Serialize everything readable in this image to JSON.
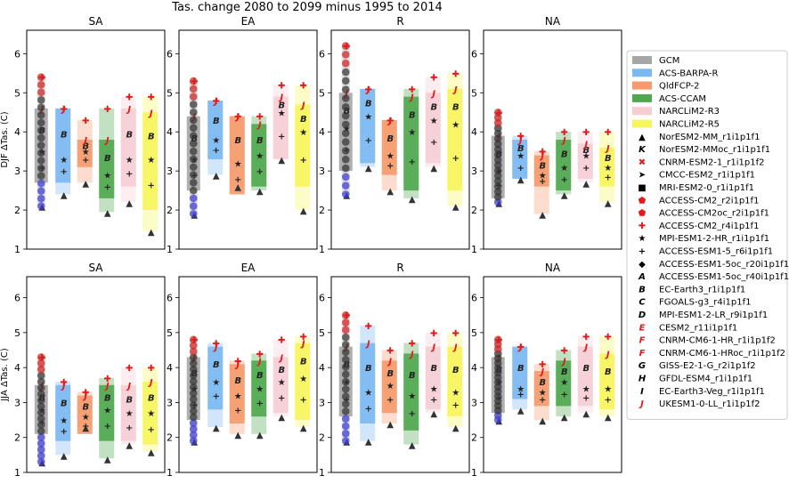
{
  "chart_data": {
    "type": "box",
    "title": "Tas. change 2080 to 2099 minus 1995 to 2014",
    "regions": [
      "SA",
      "EA",
      "R",
      "NA"
    ],
    "row_ylabels": [
      "DJF ΔTas. (C)",
      "JJA ΔTas. (C)"
    ],
    "ylim": [
      1,
      6.6
    ],
    "yticks": [
      1,
      2,
      3,
      4,
      5,
      6
    ],
    "colors": {
      "GCM": "#a6a6a6",
      "ACS-BARPA-R": "#7ab8f0",
      "QldFCP-2": "#f59a6c",
      "ACS-CCAM": "#4fa84f",
      "NARCLiM2-R3": "#f6cdd5",
      "NARCLiM2-R5": "#f7f55c"
    },
    "legend_groups": [
      {
        "label": "GCM",
        "color": "#a6a6a6"
      },
      {
        "label": "ACS-BARPA-R",
        "color": "#7ab8f0"
      },
      {
        "label": "QldFCP-2",
        "color": "#f59a6c"
      },
      {
        "label": "ACS-CCAM",
        "color": "#4fa84f"
      },
      {
        "label": "NARCLiM2-R3",
        "color": "#f6cdd5"
      },
      {
        "label": "NARCLiM2-R5",
        "color": "#f7f55c"
      }
    ],
    "legend_models": [
      {
        "label": "NorESM2-MM_r1i1p1f1",
        "marker": "▲",
        "color": "#000000"
      },
      {
        "label": "NorESM2-MMoc_r1i1p1f1",
        "marker": "K",
        "color": "#000000"
      },
      {
        "label": "CNRM-ESM2-1_r1i1p1f2",
        "marker": "✖",
        "color": "#e31a1c"
      },
      {
        "label": "CMCC-ESM2_r1i1p1f1",
        "marker": "➤",
        "color": "#000000"
      },
      {
        "label": "MRI-ESM2-0_r1i1p1f1",
        "marker": "■",
        "color": "#000000"
      },
      {
        "label": "ACCESS-CM2_r2i1p1f1",
        "marker": "⬟",
        "color": "#e31a1c"
      },
      {
        "label": "ACCESS-CM2oc_r2i1p1f1",
        "marker": "⬟",
        "color": "#e31a1c"
      },
      {
        "label": "ACCESS-CM2_r4i1p1f1",
        "marker": "✚",
        "color": "#e31a1c"
      },
      {
        "label": "MPI-ESM1-2-HR_r1i1p1f1",
        "marker": "★",
        "color": "#000000"
      },
      {
        "label": "ACCESS-ESM1-5_r6i1p1f1",
        "marker": "+",
        "color": "#000000"
      },
      {
        "label": "ACCESS-ESM1-5oc_r20i1p1f1",
        "marker": "◆",
        "color": "#000000"
      },
      {
        "label": "ACCESS-ESM1-5oc_r40i1p1f1",
        "marker": "A",
        "color": "#000000"
      },
      {
        "label": "EC-Earth3_r1i1p1f1",
        "marker": "B",
        "color": "#000000"
      },
      {
        "label": "FGOALS-g3_r4i1p1f1",
        "marker": "C",
        "color": "#000000"
      },
      {
        "label": "MPI-ESM1-2-LR_r9i1p1f1",
        "marker": "D",
        "color": "#000000"
      },
      {
        "label": "CESM2_r11i1p1f1",
        "marker": "E",
        "color": "#e31a1c"
      },
      {
        "label": "CNRM-CM6-1-HR_r1i1p1f2",
        "marker": "F",
        "color": "#e31a1c"
      },
      {
        "label": "CNRM-CM6-1-HRoc_r1i1p1f2",
        "marker": "F",
        "color": "#e31a1c"
      },
      {
        "label": "GISS-E2-1-G_r2i1p1f2",
        "marker": "G",
        "color": "#000000"
      },
      {
        "label": "GFDL-ESM4_r1i1p1f1",
        "marker": "H",
        "color": "#000000"
      },
      {
        "label": "EC-Earth3-Veg_r1i1p1f1",
        "marker": "I",
        "color": "#000000"
      },
      {
        "label": "UKESM1-0-LL_r1i1p1f2",
        "marker": "J",
        "color": "#e31a1c"
      }
    ],
    "panels": [
      {
        "row": 0,
        "region": "SA",
        "boxes": [
          {
            "group": "GCM",
            "min": 2.1,
            "max": 5.4,
            "low": 2.7,
            "high": 4.6,
            "mid": 3.5
          },
          {
            "group": "ACS-BARPA-R",
            "min": 2.4,
            "max": 4.6,
            "low": 2.7,
            "high": 4.6,
            "mid": 3.3
          },
          {
            "group": "QldFCP-2",
            "min": 2.7,
            "max": 4.3,
            "low": 3.1,
            "high": 3.8,
            "mid": 3.5
          },
          {
            "group": "ACS-CCAM",
            "min": 1.95,
            "max": 4.6,
            "low": 2.3,
            "high": 3.8,
            "mid": 2.9
          },
          {
            "group": "NARCLiM2-R3",
            "min": 2.2,
            "max": 4.9,
            "low": 2.6,
            "high": 4.6,
            "mid": 3.3
          },
          {
            "group": "NARCLiM2-R5",
            "min": 1.45,
            "max": 4.9,
            "low": 2.0,
            "high": 4.5,
            "mid": 3.3
          }
        ]
      },
      {
        "row": 0,
        "region": "EA",
        "boxes": [
          {
            "group": "GCM",
            "min": 1.9,
            "max": 5.3,
            "low": 2.5,
            "high": 4.4,
            "mid": 3.3
          },
          {
            "group": "ACS-BARPA-R",
            "min": 2.9,
            "max": 4.8,
            "low": 3.3,
            "high": 4.8,
            "mid": 3.8
          },
          {
            "group": "QldFCP-2",
            "min": 2.6,
            "max": 4.4,
            "low": 2.4,
            "high": 4.4,
            "mid": 3.2
          },
          {
            "group": "ACS-CCAM",
            "min": 2.5,
            "max": 4.4,
            "low": 2.6,
            "high": 4.2,
            "mid": 3.4
          },
          {
            "group": "NARCLiM2-R3",
            "min": 3.3,
            "max": 5.2,
            "low": 3.3,
            "high": 4.9,
            "mid": 4.5
          },
          {
            "group": "NARCLiM2-R5",
            "min": 2.0,
            "max": 5.2,
            "low": 2.6,
            "high": 4.7,
            "mid": 4.0
          }
        ]
      },
      {
        "row": 0,
        "region": "R",
        "boxes": [
          {
            "group": "GCM",
            "min": 2.4,
            "max": 6.2,
            "low": 3.0,
            "high": 5.0,
            "mid": 4.1
          },
          {
            "group": "ACS-BARPA-R",
            "min": 3.1,
            "max": 5.1,
            "low": 3.2,
            "high": 5.1,
            "mid": 4.4
          },
          {
            "group": "QldFCP-2",
            "min": 2.5,
            "max": 4.3,
            "low": 2.9,
            "high": 4.3,
            "mid": 3.4
          },
          {
            "group": "ACS-CCAM",
            "min": 2.3,
            "max": 5.1,
            "low": 2.5,
            "high": 4.9,
            "mid": 4.0
          },
          {
            "group": "NARCLiM2-R3",
            "min": 3.1,
            "max": 5.4,
            "low": 3.2,
            "high": 5.0,
            "mid": 4.3
          },
          {
            "group": "NARCLiM2-R5",
            "min": 2.1,
            "max": 5.5,
            "low": 2.5,
            "high": 5.1,
            "mid": 4.2
          }
        ]
      },
      {
        "row": 0,
        "region": "NA",
        "boxes": [
          {
            "group": "GCM",
            "min": 2.2,
            "max": 4.5,
            "low": 2.3,
            "high": 3.9,
            "mid": 3.0
          },
          {
            "group": "ACS-BARPA-R",
            "min": 2.8,
            "max": 3.9,
            "low": 2.8,
            "high": 3.8,
            "mid": 3.4
          },
          {
            "group": "QldFCP-2",
            "min": 1.9,
            "max": 3.5,
            "low": 2.6,
            "high": 3.4,
            "mid": 2.9
          },
          {
            "group": "ACS-CCAM",
            "min": 2.4,
            "max": 4.0,
            "low": 2.5,
            "high": 3.8,
            "mid": 3.1
          },
          {
            "group": "NARCLiM2-R3",
            "min": 2.7,
            "max": 4.0,
            "low": 2.8,
            "high": 3.7,
            "mid": 3.4
          },
          {
            "group": "NARCLiM2-R5",
            "min": 2.2,
            "max": 4.0,
            "low": 2.6,
            "high": 3.6,
            "mid": 3.1
          }
        ]
      },
      {
        "row": 1,
        "region": "SA",
        "boxes": [
          {
            "group": "GCM",
            "min": 1.3,
            "max": 4.3,
            "low": 2.1,
            "high": 3.5,
            "mid": 2.8
          },
          {
            "group": "ACS-BARPA-R",
            "min": 1.5,
            "max": 3.6,
            "low": 1.9,
            "high": 3.5,
            "mid": 2.5
          },
          {
            "group": "QldFCP-2",
            "min": 2.3,
            "max": 3.3,
            "low": 2.1,
            "high": 3.2,
            "mid": 2.6
          },
          {
            "group": "ACS-CCAM",
            "min": 1.4,
            "max": 3.7,
            "low": 1.9,
            "high": 3.5,
            "mid": 2.8
          },
          {
            "group": "NARCLiM2-R3",
            "min": 1.8,
            "max": 4.0,
            "low": 1.9,
            "high": 3.5,
            "mid": 2.7
          },
          {
            "group": "NARCLiM2-R5",
            "min": 1.6,
            "max": 4.0,
            "low": 1.8,
            "high": 3.6,
            "mid": 2.7
          }
        ]
      },
      {
        "row": 1,
        "region": "EA",
        "boxes": [
          {
            "group": "GCM",
            "min": 1.9,
            "max": 4.8,
            "low": 2.5,
            "high": 4.3,
            "mid": 3.4
          },
          {
            "group": "ACS-BARPA-R",
            "min": 2.3,
            "max": 4.7,
            "low": 2.8,
            "high": 4.6,
            "mid": 3.6
          },
          {
            "group": "QldFCP-2",
            "min": 2.1,
            "max": 4.2,
            "low": 2.4,
            "high": 4.1,
            "mid": 3.2
          },
          {
            "group": "ACS-CCAM",
            "min": 2.1,
            "max": 4.4,
            "low": 2.6,
            "high": 4.2,
            "mid": 3.4
          },
          {
            "group": "NARCLiM2-R3",
            "min": 2.6,
            "max": 4.8,
            "low": 2.7,
            "high": 4.3,
            "mid": 3.6
          },
          {
            "group": "NARCLiM2-R5",
            "min": 2.3,
            "max": 4.9,
            "low": 2.5,
            "high": 4.7,
            "mid": 3.7
          }
        ]
      },
      {
        "row": 1,
        "region": "R",
        "boxes": [
          {
            "group": "GCM",
            "min": 1.9,
            "max": 5.5,
            "low": 2.6,
            "high": 4.6,
            "mid": 3.6
          },
          {
            "group": "ACS-BARPA-R",
            "min": 1.9,
            "max": 5.2,
            "low": 2.4,
            "high": 4.7,
            "mid": 3.3
          },
          {
            "group": "QldFCP-2",
            "min": 2.4,
            "max": 4.5,
            "low": 2.7,
            "high": 4.2,
            "mid": 3.5
          },
          {
            "group": "ACS-CCAM",
            "min": 1.8,
            "max": 4.7,
            "low": 2.2,
            "high": 4.4,
            "mid": 3.2
          },
          {
            "group": "NARCLiM2-R3",
            "min": 2.7,
            "max": 5.0,
            "low": 2.8,
            "high": 4.6,
            "mid": 3.4
          },
          {
            "group": "NARCLiM2-R5",
            "min": 2.3,
            "max": 5.0,
            "low": 2.6,
            "high": 4.6,
            "mid": 3.3
          }
        ]
      },
      {
        "row": 1,
        "region": "NA",
        "boxes": [
          {
            "group": "GCM",
            "min": 2.5,
            "max": 4.8,
            "low": 2.7,
            "high": 4.3,
            "mid": 3.6
          },
          {
            "group": "ACS-BARPA-R",
            "min": 2.8,
            "max": 4.6,
            "low": 3.1,
            "high": 4.6,
            "mid": 3.4
          },
          {
            "group": "QldFCP-2",
            "min": 2.5,
            "max": 4.1,
            "low": 2.9,
            "high": 3.9,
            "mid": 3.3
          },
          {
            "group": "ACS-CCAM",
            "min": 2.6,
            "max": 4.5,
            "low": 2.9,
            "high": 4.2,
            "mid": 3.6
          },
          {
            "group": "NARCLiM2-R3",
            "min": 2.7,
            "max": 4.9,
            "low": 2.9,
            "high": 4.6,
            "mid": 3.4
          },
          {
            "group": "NARCLiM2-R5",
            "min": 2.6,
            "max": 4.9,
            "low": 2.8,
            "high": 4.4,
            "mid": 3.4
          }
        ]
      }
    ]
  }
}
